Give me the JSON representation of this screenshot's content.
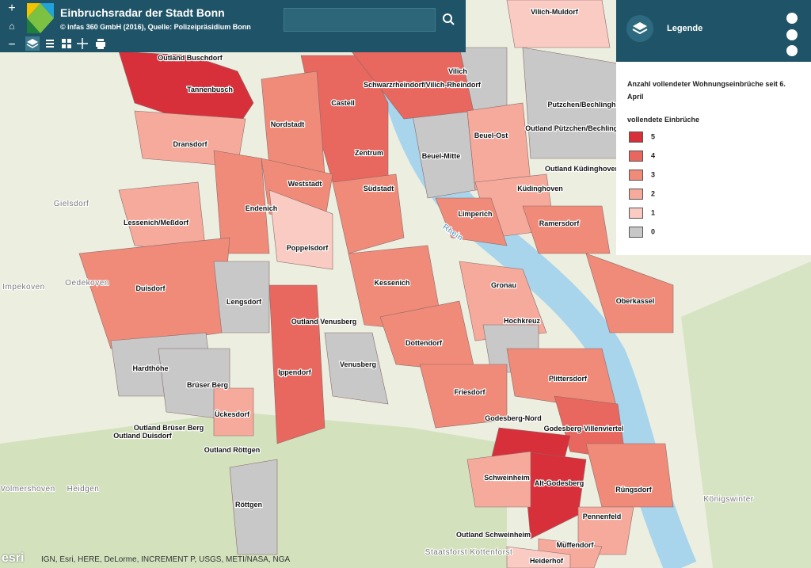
{
  "header": {
    "title": "Einbruchsradar der Stadt Bonn",
    "subtitle": "© infas 360 GmbH (2016), Quelle: Polizeipräsidium Bonn"
  },
  "legend": {
    "heading": "Legende",
    "description": "Anzahl vollendeter Wohnungseinbrüche seit 6. April",
    "subheading": "vollendete Einbrüche",
    "classes": [
      {
        "value": 5,
        "color": "#d7303b"
      },
      {
        "value": 4,
        "color": "#e8675e"
      },
      {
        "value": 3,
        "color": "#f08b79"
      },
      {
        "value": 2,
        "color": "#f5aa9c"
      },
      {
        "value": 1,
        "color": "#f9cbc2"
      },
      {
        "value": 0,
        "color": "#c8c8c8"
      }
    ]
  },
  "districts": [
    "Outland Buschdorf",
    "Tannenbusch",
    "Castell",
    "Schwarzrheindorf/Vilich-Rheindorf",
    "Vilich",
    "Vilich-Muldorf",
    "Putzchen/Bechlinghoven",
    "Outland Pützchen/Bechlinghoven",
    "Nordstadt",
    "Beuel-Ost",
    "Dransdorf",
    "Zentrum",
    "Beuel-Mitte",
    "Outland Küdinghoven",
    "Weststadt",
    "Südstadt",
    "Küdinghoven",
    "Endenich",
    "Lessenich/Meßdorf",
    "Limperich",
    "Ramersdorf",
    "Poppelsdorf",
    "Kessenich",
    "Gronau",
    "Duisdorf",
    "Lengsdorf",
    "Oberkassel",
    "Outland Venusberg",
    "Hochkreuz",
    "Dottendorf",
    "Hardthöhe",
    "Venusberg",
    "Ippendorf",
    "Plittersdorf",
    "Friesdorf",
    "Brüser Berg",
    "Ückesdorf",
    "Godesberg-Nord",
    "Godesberg-Villenviertel",
    "Outland Brüser Berg",
    "Outland Duisdorf",
    "Outland Röttgen",
    "Schweinheim",
    "Alt-Godesberg",
    "Röttgen",
    "Rüngsdorf",
    "Pennenfeld",
    "Outland Schweinheim",
    "Muffendorf",
    "Heiderhof"
  ],
  "places": [
    "Gielsdorf",
    "Impekoven",
    "Oedekoven",
    "Volmershoven",
    "Heidgen",
    "Königswinter",
    "Staatsforst Kottenforst",
    "Rhein"
  ],
  "attribution": "IGN, Esri, HERE, DeLorme, INCREMENT P, USGS, METI/NASA, NGA",
  "esri": "esri"
}
